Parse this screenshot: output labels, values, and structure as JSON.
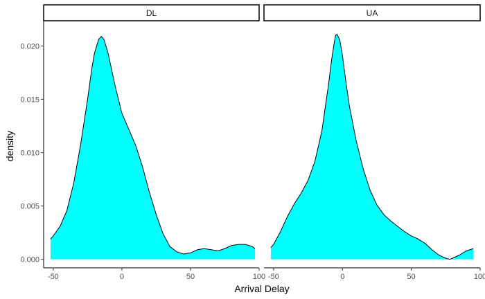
{
  "chart_data": {
    "type": "area",
    "facets": [
      {
        "label": "DL",
        "series": [
          {
            "x": [
              -52,
              -50,
              -45,
              -40,
              -35,
              -30,
              -25,
              -22,
              -20,
              -17,
              -15,
              -13,
              -10,
              -5,
              0,
              5,
              10,
              15,
              20,
              25,
              30,
              35,
              40,
              45,
              50,
              55,
              60,
              65,
              70,
              75,
              80,
              85,
              90,
              95,
              97
            ],
            "y": [
              0.0019,
              0.0022,
              0.0031,
              0.0046,
              0.0072,
              0.0108,
              0.015,
              0.0178,
              0.0193,
              0.0206,
              0.0209,
              0.0206,
              0.0193,
              0.0163,
              0.0137,
              0.0122,
              0.0107,
              0.0087,
              0.0063,
              0.0042,
              0.0024,
              0.0012,
              0.0007,
              0.0005,
              0.0006,
              0.0009,
              0.001,
              0.0009,
              0.0008,
              0.001,
              0.0013,
              0.0014,
              0.0014,
              0.0012,
              0.001
            ]
          }
        ]
      },
      {
        "label": "UA",
        "series": [
          {
            "x": [
              -52,
              -50,
              -45,
              -40,
              -35,
              -30,
              -25,
              -20,
              -15,
              -10,
              -8,
              -6,
              -5,
              -4,
              -2,
              0,
              2,
              5,
              10,
              15,
              20,
              25,
              30,
              35,
              40,
              45,
              50,
              55,
              60,
              65,
              70,
              75,
              78,
              80,
              85,
              90,
              95
            ],
            "y": [
              0.0011,
              0.0014,
              0.0026,
              0.004,
              0.0052,
              0.0062,
              0.0074,
              0.0092,
              0.012,
              0.0165,
              0.0186,
              0.0203,
              0.021,
              0.0211,
              0.0206,
              0.0191,
              0.0171,
              0.0144,
              0.0111,
              0.0085,
              0.0065,
              0.0051,
              0.0042,
              0.0036,
              0.0031,
              0.0026,
              0.0022,
              0.0019,
              0.0015,
              0.0009,
              0.0004,
              0.0001,
              0.0,
              0.0001,
              0.0004,
              0.0008,
              0.001
            ]
          }
        ]
      }
    ],
    "xlabel": "Arrival Delay",
    "ylabel": "density",
    "xlim": [
      -57,
      100
    ],
    "ylim": [
      -0.0008,
      0.0223
    ],
    "x_ticks": [
      -50,
      0,
      50,
      100
    ],
    "y_ticks": [
      0.0,
      0.005,
      0.01,
      0.015,
      0.02
    ],
    "y_tick_labels": [
      "0.000",
      "0.005",
      "0.010",
      "0.015",
      "0.020"
    ],
    "fill_color": "#00FFFF",
    "line_color": "#000000",
    "grid": false
  }
}
